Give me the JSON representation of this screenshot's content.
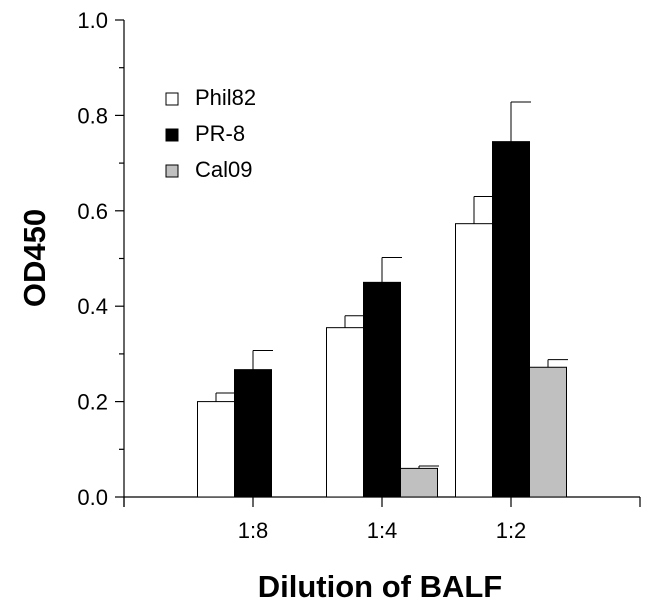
{
  "chart_data": {
    "type": "bar",
    "title": "",
    "xlabel": "Dilution of BALF",
    "ylabel": "OD450",
    "categories": [
      "1:8",
      "1:4",
      "1:2"
    ],
    "ylim": [
      0,
      1.0
    ],
    "yticks": [
      0.0,
      0.2,
      0.4,
      0.6,
      0.8,
      1.0
    ],
    "ytick_labels": [
      "0.0",
      "0.2",
      "0.4",
      "0.6",
      "0.8",
      "1.0"
    ],
    "grid": false,
    "legend_position": "top-left",
    "series": [
      {
        "name": "Phil82",
        "color": "#ffffff",
        "values": [
          0.2,
          0.355,
          0.573
        ],
        "errors": [
          0.018,
          0.025,
          0.057
        ]
      },
      {
        "name": "PR-8",
        "color": "#000000",
        "values": [
          0.267,
          0.45,
          0.745
        ],
        "errors": [
          0.04,
          0.052,
          0.083
        ]
      },
      {
        "name": "Cal09",
        "color": "#c0c0c0",
        "values": [
          null,
          0.06,
          0.272
        ],
        "errors": [
          null,
          0.005,
          0.016
        ]
      }
    ]
  }
}
